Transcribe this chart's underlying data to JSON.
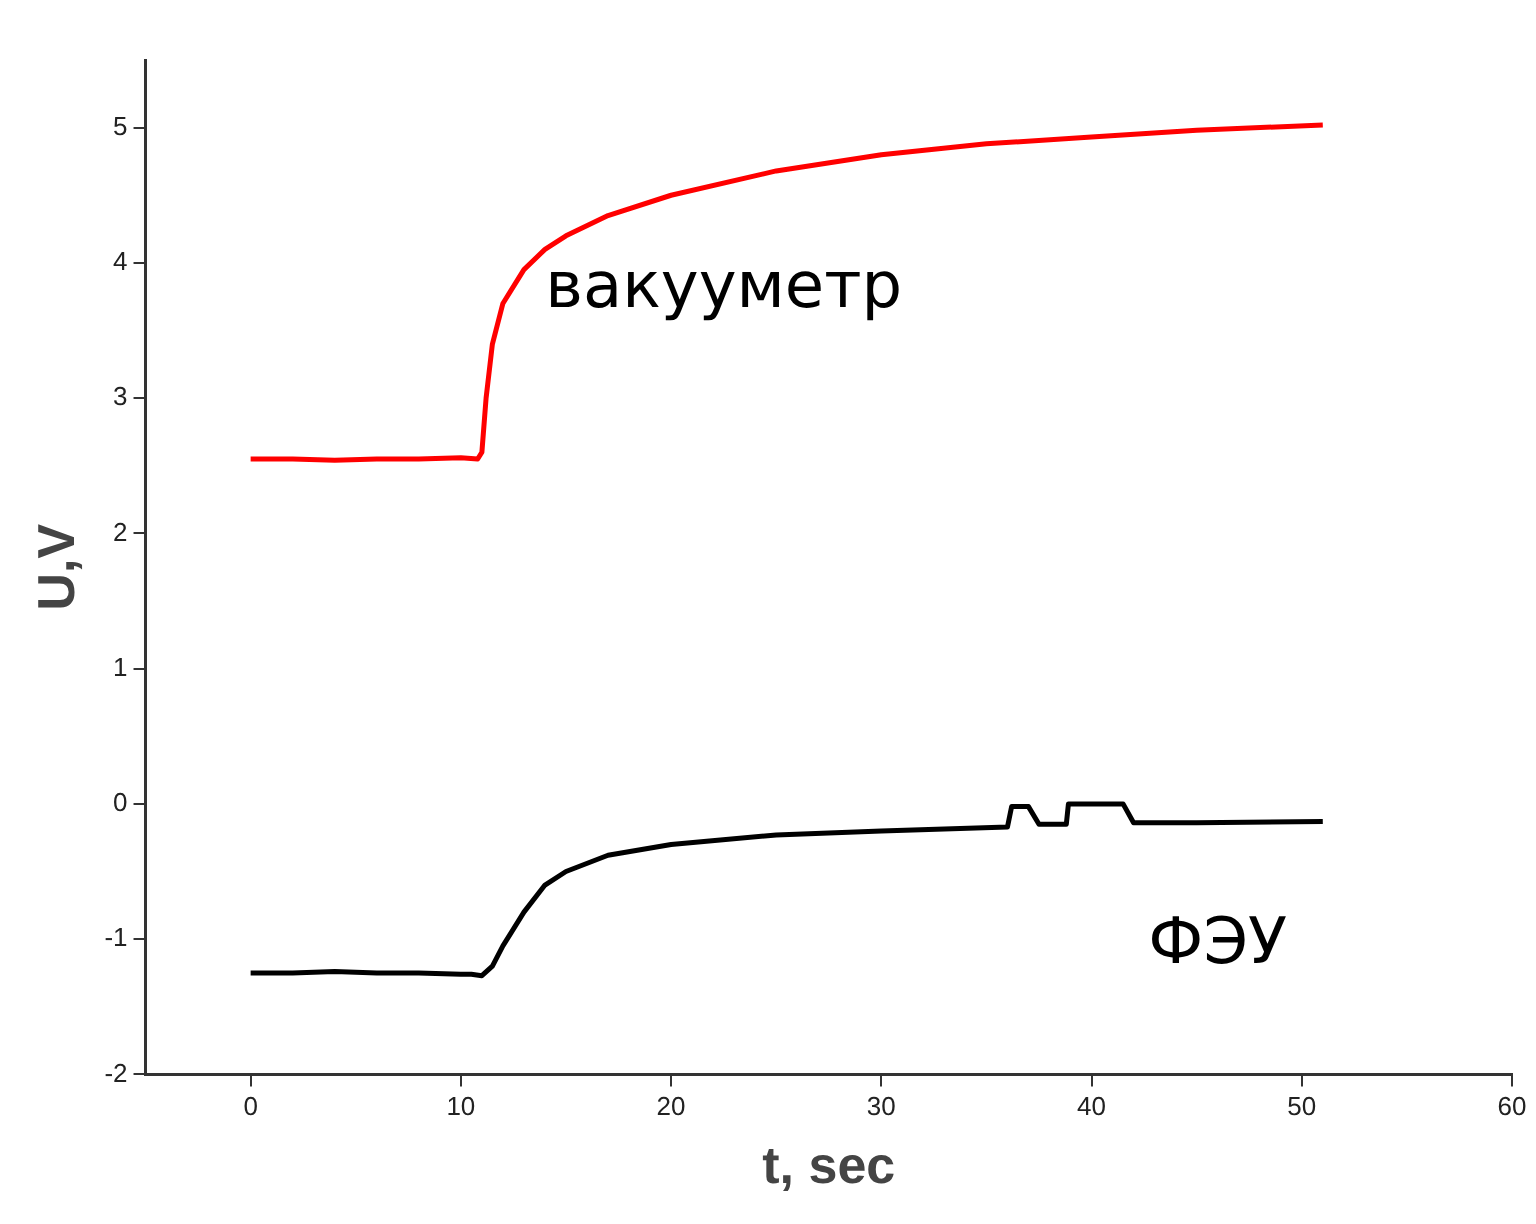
{
  "chart_data": {
    "type": "line",
    "xlabel": "t, sec",
    "ylabel": "U,V",
    "xlim": [
      -5,
      60
    ],
    "ylim": [
      -2,
      5.5
    ],
    "xticks": [
      0,
      10,
      20,
      30,
      40,
      50,
      60
    ],
    "yticks": [
      -2,
      -1,
      0,
      1,
      2,
      3,
      4,
      5
    ],
    "grid": false,
    "legend": false,
    "marker": "none",
    "line_style": "solid",
    "series": [
      {
        "name": "вакууметр",
        "color": "#ff0000",
        "x": [
          0,
          2,
          4,
          6,
          8,
          10,
          10.8,
          11,
          11.2,
          11.5,
          12,
          13,
          14,
          15,
          17,
          20,
          25,
          30,
          35,
          40,
          45,
          51
        ],
        "values": [
          2.55,
          2.55,
          2.54,
          2.55,
          2.55,
          2.56,
          2.55,
          2.6,
          3.0,
          3.4,
          3.7,
          3.95,
          4.1,
          4.2,
          4.35,
          4.5,
          4.68,
          4.8,
          4.88,
          4.93,
          4.98,
          5.02
        ]
      },
      {
        "name": "ФЭУ",
        "color": "#000000",
        "x": [
          0,
          2,
          4,
          6,
          8,
          10,
          10.5,
          11,
          11.5,
          12,
          13,
          14,
          15,
          17,
          20,
          25,
          30,
          36,
          36.2,
          37,
          37.5,
          38.8,
          38.9,
          41.5,
          42,
          45,
          51
        ],
        "values": [
          -1.25,
          -1.25,
          -1.24,
          -1.25,
          -1.25,
          -1.26,
          -1.26,
          -1.27,
          -1.2,
          -1.05,
          -0.8,
          -0.6,
          -0.5,
          -0.38,
          -0.3,
          -0.23,
          -0.2,
          -0.17,
          -0.02,
          -0.02,
          -0.15,
          -0.15,
          0,
          0,
          -0.14,
          -0.14,
          -0.13
        ]
      }
    ]
  }
}
